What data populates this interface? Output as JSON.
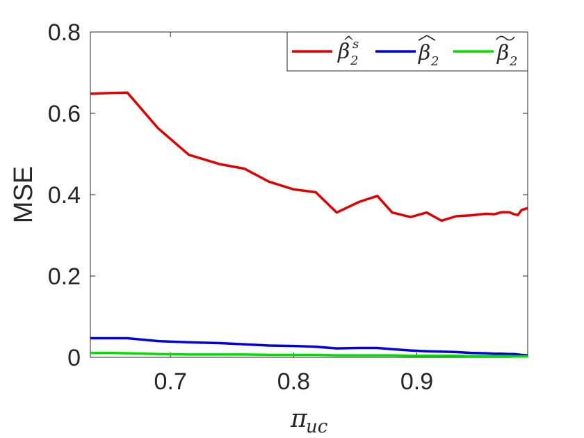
{
  "chart_data": {
    "type": "line",
    "xlabel_symbol": "π",
    "xlabel_subscript": "uc",
    "ylabel": "MSE",
    "xlim": [
      0.635,
      0.99
    ],
    "ylim": [
      0,
      0.8
    ],
    "xticks": [
      0.7,
      0.8,
      0.9
    ],
    "xtick_labels": [
      "0.7",
      "0.8",
      "0.9"
    ],
    "yticks": [
      0,
      0.2,
      0.4,
      0.6,
      0.8
    ],
    "ytick_labels": [
      "0",
      "0.2",
      "0.4",
      "0.6",
      "0.8"
    ],
    "grid": false,
    "legend_position": "top-right",
    "x": [
      0.635,
      0.652,
      0.665,
      0.69,
      0.715,
      0.74,
      0.76,
      0.78,
      0.8,
      0.818,
      0.835,
      0.853,
      0.868,
      0.88,
      0.895,
      0.908,
      0.92,
      0.932,
      0.944,
      0.956,
      0.963,
      0.969,
      0.975,
      0.979,
      0.982,
      0.985,
      0.99
    ],
    "series": [
      {
        "name": "β̂₂ˢ",
        "color": "#e00000",
        "values": [
          0.648,
          0.65,
          0.651,
          0.563,
          0.498,
          0.475,
          0.464,
          0.432,
          0.413,
          0.406,
          0.356,
          0.382,
          0.397,
          0.356,
          0.345,
          0.356,
          0.336,
          0.347,
          0.349,
          0.353,
          0.352,
          0.357,
          0.357,
          0.352,
          0.35,
          0.362,
          0.367
        ]
      },
      {
        "name": "β̂₂",
        "color": "#0000e0",
        "values": [
          0.047,
          0.047,
          0.047,
          0.04,
          0.037,
          0.035,
          0.032,
          0.029,
          0.028,
          0.026,
          0.022,
          0.023,
          0.023,
          0.02,
          0.017,
          0.015,
          0.014,
          0.013,
          0.011,
          0.01,
          0.009,
          0.009,
          0.008,
          0.008,
          0.007,
          0.006,
          0.005
        ]
      },
      {
        "name": "β̃₂",
        "color": "#00e000",
        "values": [
          0.011,
          0.011,
          0.01,
          0.008,
          0.007,
          0.007,
          0.007,
          0.006,
          0.006,
          0.006,
          0.005,
          0.005,
          0.005,
          0.005,
          0.004,
          0.004,
          0.004,
          0.004,
          0.003,
          0.003,
          0.003,
          0.003,
          0.003,
          0.002,
          0.002,
          0.002,
          0.002
        ]
      }
    ]
  }
}
